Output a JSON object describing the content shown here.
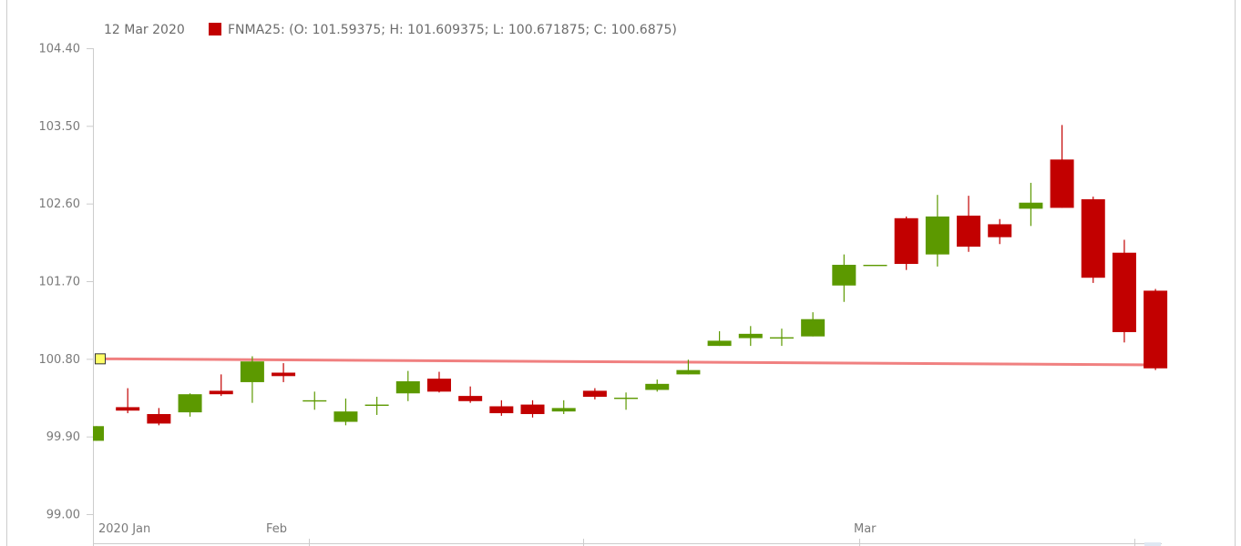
{
  "legend": {
    "date": "12 Mar 2020",
    "text": "FNMA25: (O: 101.59375; H: 101.609375; L: 100.671875; C: 100.6875)",
    "swatch_color": "#c20000"
  },
  "colors": {
    "up": "#5c9900",
    "down": "#c20000",
    "trend": "#f08080",
    "marker": "#ffff66",
    "axis": "#cccccc"
  },
  "chart_data": {
    "type": "candlestick",
    "series_name": "FNMA25",
    "yticks": [
      "104.40",
      "103.50",
      "102.60",
      "101.70",
      "100.80",
      "99.90",
      "99.00"
    ],
    "ylim": [
      99.0,
      104.4
    ],
    "xtick_labels": [
      {
        "label": "2020 Jan",
        "index": 0
      },
      {
        "label": "Feb",
        "index": 6
      },
      {
        "label": "Mar",
        "index": 25
      }
    ],
    "grid": false,
    "trend_line": {
      "start": 100.8,
      "end": 100.73
    },
    "candles": [
      {
        "o": 99.85,
        "h": 100.02,
        "l": 99.85,
        "c": 100.02
      },
      {
        "o": 100.24,
        "h": 100.46,
        "l": 100.17,
        "c": 100.2
      },
      {
        "o": 100.16,
        "h": 100.23,
        "l": 100.03,
        "c": 100.05
      },
      {
        "o": 100.18,
        "h": 100.4,
        "l": 100.13,
        "c": 100.39
      },
      {
        "o": 100.43,
        "h": 100.62,
        "l": 100.37,
        "c": 100.39
      },
      {
        "o": 100.53,
        "h": 100.83,
        "l": 100.29,
        "c": 100.77
      },
      {
        "o": 100.64,
        "h": 100.75,
        "l": 100.53,
        "c": 100.6
      },
      {
        "o": 100.32,
        "h": 100.42,
        "l": 100.21,
        "c": 100.32
      },
      {
        "o": 100.07,
        "h": 100.34,
        "l": 100.03,
        "c": 100.19
      },
      {
        "o": 100.27,
        "h": 100.36,
        "l": 100.15,
        "c": 100.27
      },
      {
        "o": 100.4,
        "h": 100.66,
        "l": 100.31,
        "c": 100.54
      },
      {
        "o": 100.57,
        "h": 100.65,
        "l": 100.41,
        "c": 100.42
      },
      {
        "o": 100.37,
        "h": 100.48,
        "l": 100.29,
        "c": 100.31
      },
      {
        "o": 100.25,
        "h": 100.32,
        "l": 100.14,
        "c": 100.17
      },
      {
        "o": 100.27,
        "h": 100.32,
        "l": 100.12,
        "c": 100.16
      },
      {
        "o": 100.19,
        "h": 100.32,
        "l": 100.16,
        "c": 100.23
      },
      {
        "o": 100.43,
        "h": 100.46,
        "l": 100.33,
        "c": 100.36
      },
      {
        "o": 100.35,
        "h": 100.41,
        "l": 100.21,
        "c": 100.35
      },
      {
        "o": 100.44,
        "h": 100.56,
        "l": 100.42,
        "c": 100.51
      },
      {
        "o": 100.62,
        "h": 100.79,
        "l": 100.62,
        "c": 100.67
      },
      {
        "o": 100.95,
        "h": 101.12,
        "l": 100.95,
        "c": 101.01
      },
      {
        "o": 101.04,
        "h": 101.18,
        "l": 100.95,
        "c": 101.09
      },
      {
        "o": 101.05,
        "h": 101.15,
        "l": 100.95,
        "c": 101.05
      },
      {
        "o": 101.06,
        "h": 101.34,
        "l": 101.06,
        "c": 101.26
      },
      {
        "o": 101.65,
        "h": 102.01,
        "l": 101.46,
        "c": 101.89
      },
      {
        "o": 101.89,
        "h": 101.89,
        "l": 101.89,
        "c": 101.89
      },
      {
        "o": 102.43,
        "h": 102.45,
        "l": 101.83,
        "c": 101.9
      },
      {
        "o": 102.01,
        "h": 102.7,
        "l": 101.87,
        "c": 102.45
      },
      {
        "o": 102.46,
        "h": 102.69,
        "l": 102.04,
        "c": 102.1
      },
      {
        "o": 102.36,
        "h": 102.42,
        "l": 102.13,
        "c": 102.21
      },
      {
        "o": 102.54,
        "h": 102.84,
        "l": 102.34,
        "c": 102.61
      },
      {
        "o": 103.11,
        "h": 103.51,
        "l": 102.55,
        "c": 102.55
      },
      {
        "o": 102.65,
        "h": 102.68,
        "l": 101.68,
        "c": 101.74
      },
      {
        "o": 102.03,
        "h": 102.18,
        "l": 100.99,
        "c": 101.11
      },
      {
        "o": 101.59,
        "h": 101.61,
        "l": 100.67,
        "c": 100.69
      }
    ]
  }
}
